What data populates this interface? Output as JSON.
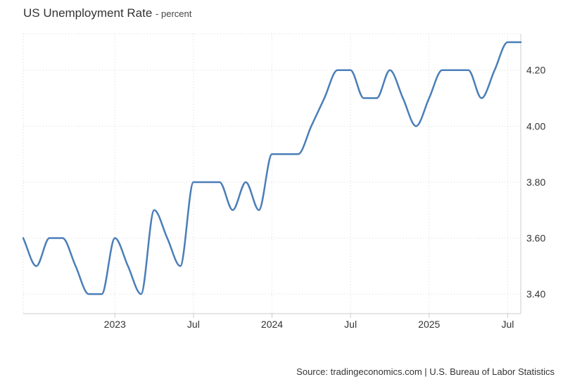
{
  "chart_data": {
    "type": "line",
    "title": "US Unemployment Rate",
    "unit_label": "percent",
    "source": "Source: tradingeconomics.com | U.S. Bureau of Labor Statistics",
    "line_color": "#4a7eb8",
    "grid": true,
    "y_axis_side": "right",
    "ylim": [
      3.33,
      4.33
    ],
    "yticks": [
      {
        "value": 3.4,
        "label": "3.40"
      },
      {
        "value": 3.6,
        "label": "3.60"
      },
      {
        "value": 3.8,
        "label": "3.80"
      },
      {
        "value": 4.0,
        "label": "4.00"
      },
      {
        "value": 4.2,
        "label": "4.20"
      }
    ],
    "xlim": [
      "2022-06",
      "2025-08"
    ],
    "xticks": [
      {
        "value": "2023-01",
        "label": "2023"
      },
      {
        "value": "2023-07",
        "label": "Jul"
      },
      {
        "value": "2024-01",
        "label": "2024"
      },
      {
        "value": "2024-07",
        "label": "Jul"
      },
      {
        "value": "2025-01",
        "label": "2025"
      },
      {
        "value": "2025-07",
        "label": "Jul"
      }
    ],
    "series": [
      {
        "x": [
          "2022-06",
          "2022-07",
          "2022-08",
          "2022-09",
          "2022-10",
          "2022-11",
          "2022-12",
          "2023-01",
          "2023-02",
          "2023-03",
          "2023-04",
          "2023-05",
          "2023-06",
          "2023-07",
          "2023-08",
          "2023-09",
          "2023-10",
          "2023-11",
          "2023-12",
          "2024-01",
          "2024-02",
          "2024-03",
          "2024-04",
          "2024-05",
          "2024-06",
          "2024-07",
          "2024-08",
          "2024-09",
          "2024-10",
          "2024-11",
          "2024-12",
          "2025-01",
          "2025-02",
          "2025-03",
          "2025-04",
          "2025-05",
          "2025-06",
          "2025-07",
          "2025-08"
        ],
        "values": [
          3.6,
          3.5,
          3.6,
          3.6,
          3.5,
          3.4,
          3.4,
          3.6,
          3.5,
          3.4,
          3.7,
          3.6,
          3.5,
          3.8,
          3.8,
          3.8,
          3.7,
          3.8,
          3.7,
          3.9,
          3.9,
          3.9,
          4.0,
          4.1,
          4.2,
          4.2,
          4.1,
          4.1,
          4.2,
          4.1,
          4.0,
          4.1,
          4.2,
          4.2,
          4.2,
          4.1,
          4.2,
          4.3,
          4.3
        ]
      }
    ]
  }
}
